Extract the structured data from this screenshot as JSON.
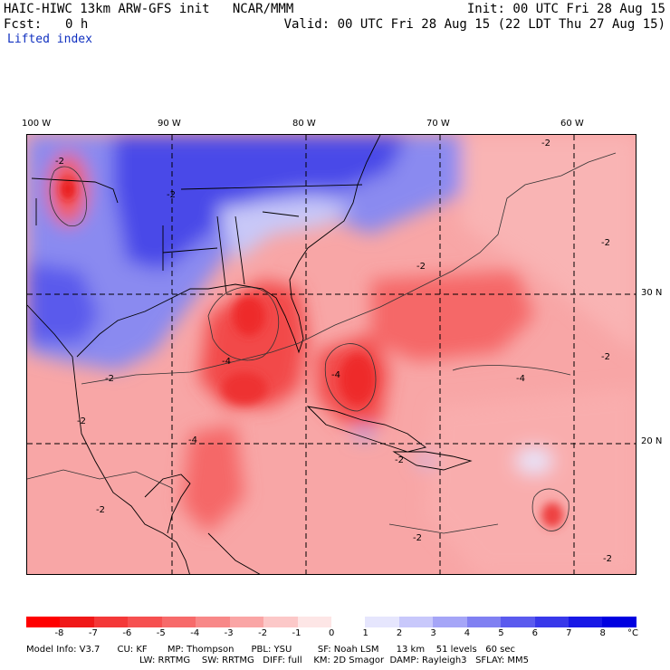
{
  "header": {
    "title": "HAIC-HIWC 13km ARW-GFS init   NCAR/MMM",
    "init": "Init: 00 UTC Fri 28 Aug 15",
    "fcst_label": "Fcst:",
    "fcst_value": "0 h",
    "valid": "Valid: 00 UTC Fri 28 Aug 15 (22 LDT Thu 27 Aug 15)",
    "field": "Lifted index"
  },
  "axes": {
    "lon_labels": [
      "100 W",
      "90 W",
      "80 W",
      "70 W",
      "60 W"
    ],
    "lat_labels": [
      "30 N",
      "20 N"
    ]
  },
  "contour_labels": [
    "-2",
    "-2",
    "-2",
    "-2",
    "-2",
    "-2",
    "-2",
    "-2",
    "-4",
    "-4",
    "-4",
    "-4",
    "-2",
    "-2",
    "-2",
    "-2"
  ],
  "colorbar": {
    "labels": [
      "-8",
      "-7",
      "-6",
      "-5",
      "-4",
      "-3",
      "-2",
      "-1",
      "0",
      "1",
      "2",
      "3",
      "4",
      "5",
      "6",
      "7",
      "8"
    ],
    "unit": "°C",
    "colors": [
      "#ff0000",
      "#f01818",
      "#f43838",
      "#f65050",
      "#f76a6a",
      "#f88888",
      "#faa5a5",
      "#fcc8c8",
      "#fde6e6",
      "#ffffff",
      "#e6e6fd",
      "#c8c8fb",
      "#a5a5f7",
      "#8080f2",
      "#5a5aee",
      "#3838ea",
      "#1818e6",
      "#0000e0"
    ]
  },
  "model_info": {
    "line1": "Model Info: V3.7      CU: KF       MP: Thompson      PBL: YSU         SF: Noah LSM      13 km    51 levels   60 sec",
    "line2": "LW: RRTMG    SW: RRTMG   DIFF: full    KM: 2D Smagor  DAMP: Rayleigh3   SFLAY: MM5"
  }
}
